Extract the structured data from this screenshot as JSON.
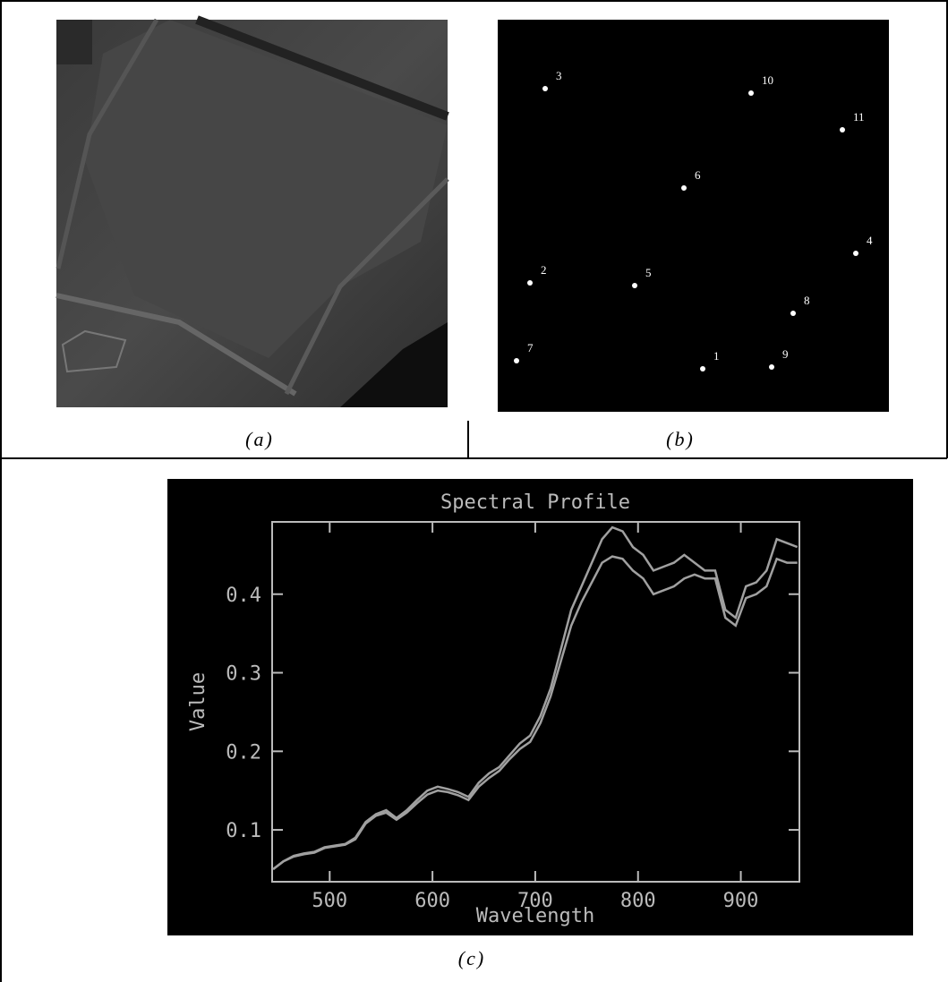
{
  "captions": [
    "(a)",
    "(b)",
    "(c)"
  ],
  "targets": [
    "1",
    "2",
    "3",
    "4",
    "5",
    "6",
    "7",
    "8",
    "9",
    "10",
    "11"
  ],
  "chart_data": {
    "type": "line",
    "title": "Spectral Profile",
    "x_label": "Wavelength",
    "y_label": "Value",
    "x": [
      445,
      455,
      465,
      475,
      485,
      495,
      505,
      515,
      525,
      535,
      545,
      555,
      565,
      575,
      585,
      595,
      605,
      615,
      625,
      635,
      645,
      655,
      665,
      675,
      685,
      695,
      705,
      715,
      725,
      735,
      745,
      755,
      765,
      775,
      785,
      795,
      805,
      815,
      825,
      835,
      845,
      855,
      865,
      875,
      885,
      895,
      905,
      915,
      925,
      935,
      945,
      955
    ],
    "series": [
      {
        "color": "#a0a0a0",
        "values": [
          0.05,
          0.06,
          0.067,
          0.07,
          0.072,
          0.078,
          0.08,
          0.082,
          0.09,
          0.11,
          0.12,
          0.125,
          0.115,
          0.125,
          0.138,
          0.15,
          0.155,
          0.152,
          0.148,
          0.142,
          0.16,
          0.172,
          0.18,
          0.195,
          0.21,
          0.22,
          0.245,
          0.28,
          0.33,
          0.38,
          0.41,
          0.44,
          0.47,
          0.485,
          0.48,
          0.46,
          0.45,
          0.43,
          0.435,
          0.44,
          0.45,
          0.44,
          0.43,
          0.43,
          0.38,
          0.37,
          0.41,
          0.415,
          0.43,
          0.47,
          0.465,
          0.46
        ]
      },
      {
        "color": "#a0a0a0",
        "values": [
          0.05,
          0.06,
          0.066,
          0.069,
          0.071,
          0.077,
          0.079,
          0.081,
          0.088,
          0.108,
          0.118,
          0.122,
          0.113,
          0.122,
          0.134,
          0.145,
          0.15,
          0.148,
          0.144,
          0.138,
          0.155,
          0.166,
          0.175,
          0.19,
          0.203,
          0.212,
          0.236,
          0.27,
          0.315,
          0.36,
          0.39,
          0.415,
          0.44,
          0.448,
          0.445,
          0.43,
          0.42,
          0.4,
          0.405,
          0.41,
          0.42,
          0.425,
          0.42,
          0.42,
          0.37,
          0.36,
          0.395,
          0.4,
          0.41,
          0.445,
          0.44,
          0.44
        ]
      }
    ],
    "xlim": [
      444,
      957
    ],
    "ylim": [
      0.034,
      0.492
    ],
    "xticks": [
      500,
      600,
      700,
      800,
      900
    ],
    "yticks": [
      0.1,
      0.2,
      0.3,
      0.4
    ]
  }
}
